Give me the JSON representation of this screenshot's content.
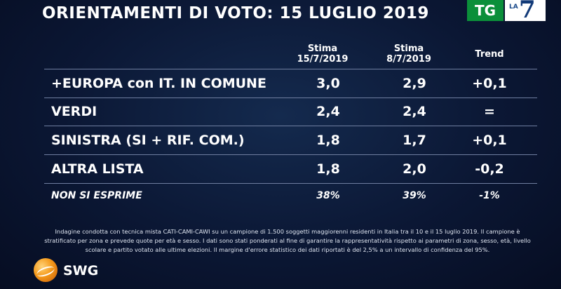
{
  "title": "ORIENTAMENTI DI VOTO: 15 LUGLIO 2019",
  "logo": {
    "tg": "TG",
    "la": "LA",
    "seven": "7"
  },
  "headers": {
    "col1_line1": "Stima",
    "col1_line2": "15/7/2019",
    "col2_line1": "Stima",
    "col2_line2": "8/7/2019",
    "col3": "Trend"
  },
  "rows": [
    {
      "name": "+EUROPA con IT. IN COMUNE",
      "v1": "3,0",
      "v2": "2,9",
      "trend": "+0,1"
    },
    {
      "name": "VERDI",
      "v1": "2,4",
      "v2": "2,4",
      "trend": "="
    },
    {
      "name": "SINISTRA (SI + RIF. COM.)",
      "v1": "1,8",
      "v2": "1,7",
      "trend": "+0,1"
    },
    {
      "name": "ALTRA LISTA",
      "v1": "1,8",
      "v2": "2,0",
      "trend": "-0,2"
    },
    {
      "name": "NON SI ESPRIME",
      "v1": "38%",
      "v2": "39%",
      "trend": "-1%"
    }
  ],
  "note": "Indagine condotta con tecnica mista CATI-CAMI-CAWI su un campione di 1.500 soggetti maggiorenni residenti in Italia tra il 10 e il 15 luglio 2019. Il campione è stratificato per zona e prevede quote per età e sesso. I dati sono stati ponderati al fine di garantire la rappresentatività rispetto ai parametri di zona, sesso, età, livello scolare e partito votato alle ultime elezioni. Il margine d'errore statistico dei dati riportati è del 2,5% a un intervallo di confidenza del 95%.",
  "brand": "SWG",
  "colors": {
    "background": "#0b1734",
    "grid": "#6f7ea0",
    "tg_green": "#0b8f3a",
    "swg_orange": "#f59a1b"
  }
}
